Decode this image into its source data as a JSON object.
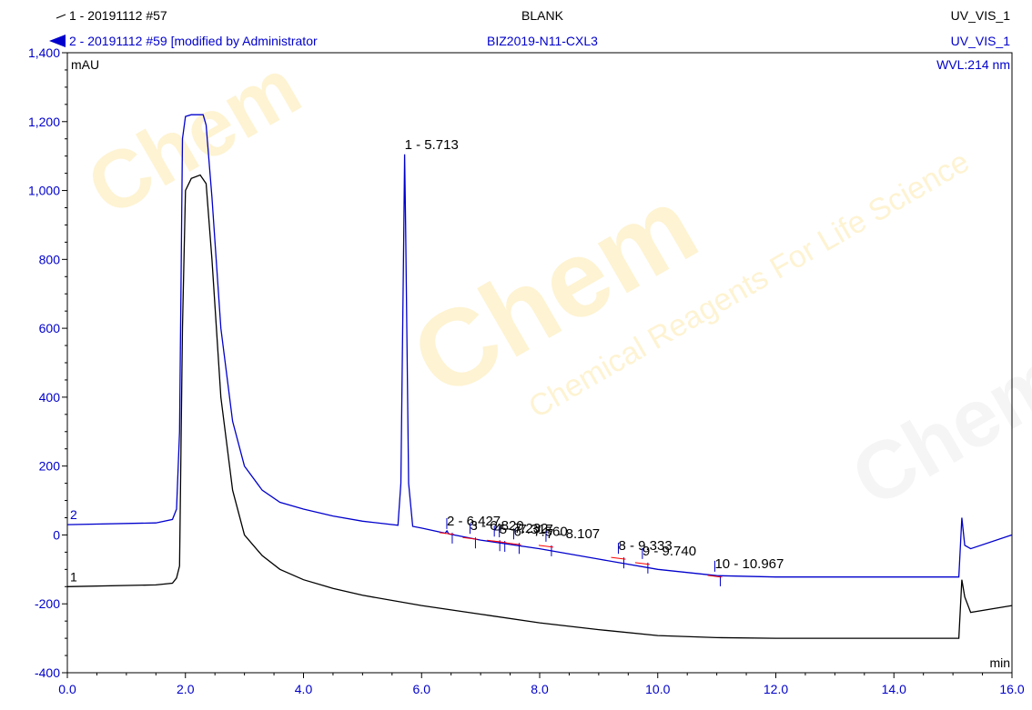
{
  "header": {
    "legend": [
      {
        "index": "1",
        "text": "1 - 20191112 #57",
        "color": "#000000"
      },
      {
        "index": "2",
        "text": "2 - 20191112 #59 [modified by Administrator",
        "color": "#0000cc"
      }
    ],
    "center": [
      "BLANK",
      "BIZ2019-N11-CXL3"
    ],
    "right": [
      "UV_VIS_1",
      "UV_VIS_1",
      "WVL:214 nm"
    ]
  },
  "chart_data": {
    "type": "line",
    "title": "",
    "xlabel": "min",
    "ylabel": "mAU",
    "xlim": [
      0.0,
      16.0
    ],
    "ylim": [
      -400,
      1400
    ],
    "x_ticks": [
      "0.0",
      "2.0",
      "4.0",
      "6.0",
      "8.0",
      "10.0",
      "12.0",
      "14.0",
      "16.0"
    ],
    "y_ticks": [
      "-400",
      "-200",
      "0",
      "200",
      "400",
      "600",
      "800",
      "1,000",
      "1,200",
      "1,400"
    ],
    "series": [
      {
        "name": "1 - 20191112 #57",
        "color": "#000000",
        "trace_label": "1",
        "x": [
          0.0,
          1.5,
          1.78,
          1.85,
          1.9,
          1.95,
          2.0,
          2.1,
          2.25,
          2.35,
          2.45,
          2.6,
          2.8,
          3.0,
          3.3,
          3.6,
          4.0,
          4.5,
          5.0,
          6.0,
          7.0,
          8.0,
          9.0,
          10.0,
          11.0,
          12.0,
          13.0,
          14.0,
          15.1,
          15.15,
          15.2,
          15.3,
          16.0
        ],
        "y": [
          -150,
          -145,
          -140,
          -125,
          -90,
          600,
          1000,
          1035,
          1045,
          1020,
          800,
          400,
          130,
          0,
          -60,
          -100,
          -130,
          -155,
          -175,
          -205,
          -230,
          -255,
          -275,
          -292,
          -298,
          -300,
          -300,
          -300,
          -300,
          -130,
          -180,
          -225,
          -205
        ]
      },
      {
        "name": "2 - 20191112 #59 [modified by Administrator",
        "color": "#0000cc",
        "trace_label": "2",
        "x": [
          0.0,
          1.5,
          1.78,
          1.85,
          1.9,
          1.95,
          2.0,
          2.1,
          2.3,
          2.35,
          2.45,
          2.6,
          2.8,
          3.0,
          3.3,
          3.6,
          4.0,
          4.5,
          5.0,
          5.6,
          5.65,
          5.7,
          5.713,
          5.73,
          5.78,
          5.85,
          6.0,
          6.4,
          6.43,
          6.46,
          7.0,
          8.0,
          9.0,
          10.0,
          11.0,
          12.0,
          13.0,
          14.0,
          15.1,
          15.15,
          15.2,
          15.3,
          16.0
        ],
        "y": [
          30,
          35,
          45,
          75,
          300,
          1150,
          1215,
          1220,
          1220,
          1190,
          980,
          600,
          330,
          200,
          130,
          95,
          75,
          55,
          40,
          28,
          150,
          900,
          1105,
          900,
          150,
          25,
          20,
          5,
          12,
          3,
          -15,
          -40,
          -70,
          -100,
          -118,
          -122,
          -122,
          -122,
          -122,
          50,
          -30,
          -40,
          0
        ]
      }
    ],
    "annotations": [
      {
        "text": "1 - 5.713",
        "x": 5.713,
        "y": 1105
      },
      {
        "text": "2 - 6.427",
        "x": 6.427,
        "y": 12
      },
      {
        "text": "3 - 6.820",
        "x": 6.82,
        "y": -2
      },
      {
        "text": "4 - 7.232",
        "x": 7.232,
        "y": -10
      },
      {
        "text": "5 - 7.317",
        "x": 7.317,
        "y": -12
      },
      {
        "text": "6 - 7.560",
        "x": 7.56,
        "y": -18
      },
      {
        "text": "7 - 8.107",
        "x": 8.107,
        "y": -25
      },
      {
        "text": "8 - 9.333",
        "x": 9.333,
        "y": -60
      },
      {
        "text": "9 - 9.740",
        "x": 9.74,
        "y": -75
      },
      {
        "text": "10 - 10.967",
        "x": 10.967,
        "y": -112
      }
    ]
  }
}
